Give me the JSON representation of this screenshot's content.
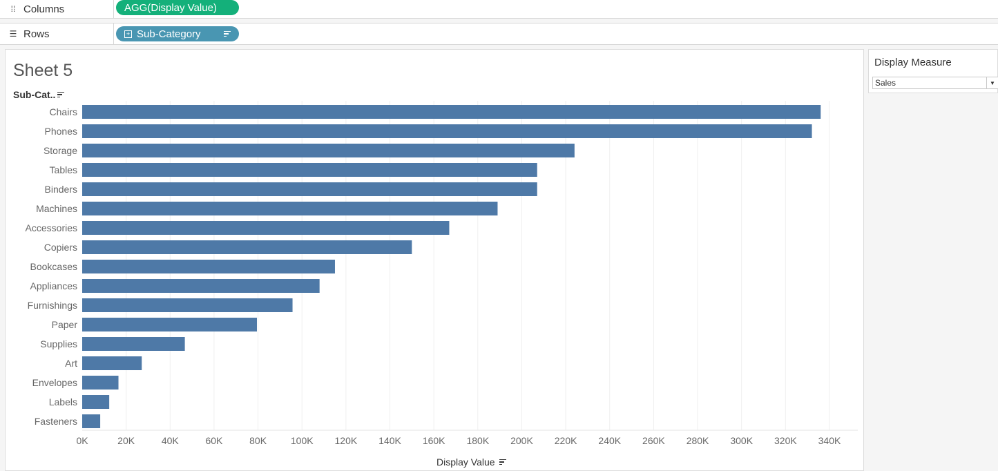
{
  "shelves": {
    "columns": {
      "label": "Columns",
      "icon": "columns-icon",
      "pill": "AGG(Display Value)"
    },
    "rows": {
      "label": "Rows",
      "icon": "rows-icon",
      "pill": "Sub-Category"
    }
  },
  "sheet": {
    "title": "Sheet 5",
    "row_header": "Sub-Cat..",
    "x_axis_title": "Display Value"
  },
  "filter": {
    "title": "Display Measure",
    "selected": "Sales"
  },
  "colors": {
    "bar": "#4e79a7",
    "columns_pill": "#14b07a",
    "rows_pill": "#4996b2"
  },
  "chart_data": {
    "type": "bar",
    "orientation": "horizontal",
    "categories": [
      "Chairs",
      "Phones",
      "Storage",
      "Tables",
      "Binders",
      "Machines",
      "Accessories",
      "Copiers",
      "Bookcases",
      "Appliances",
      "Furnishings",
      "Paper",
      "Supplies",
      "Art",
      "Envelopes",
      "Labels",
      "Fasteners"
    ],
    "values": [
      336000,
      332000,
      224000,
      207000,
      207000,
      189000,
      167000,
      150000,
      115000,
      108000,
      95700,
      79500,
      46700,
      27100,
      16500,
      12300,
      8200
    ],
    "xlabel": "Display Value",
    "ylabel": "Sub-Cat..",
    "xlim": [
      0,
      350000
    ],
    "ticks": [
      "0K",
      "20K",
      "40K",
      "60K",
      "80K",
      "100K",
      "120K",
      "140K",
      "160K",
      "180K",
      "200K",
      "220K",
      "240K",
      "260K",
      "280K",
      "300K",
      "320K",
      "340K"
    ],
    "tick_values": [
      0,
      20000,
      40000,
      60000,
      80000,
      100000,
      120000,
      140000,
      160000,
      180000,
      200000,
      220000,
      240000,
      260000,
      280000,
      300000,
      320000,
      340000
    ],
    "grid": true
  }
}
